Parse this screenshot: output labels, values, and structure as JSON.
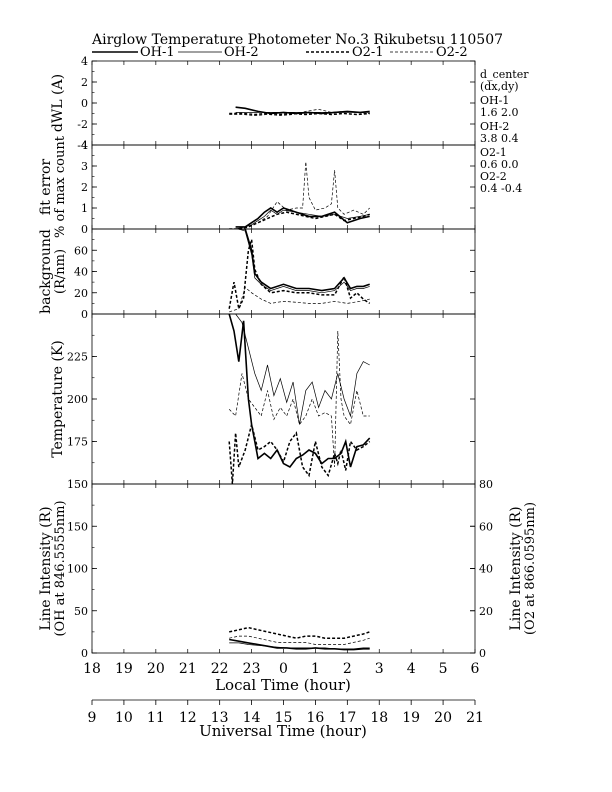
{
  "title": "Airglow Temperature Photometer No.3  Rikubetsu    110507",
  "legend": [
    {
      "label": "OH-1",
      "style": "solid-thick"
    },
    {
      "label": "OH-2",
      "style": "solid-thin"
    },
    {
      "label": "O2-1",
      "style": "dash-thick"
    },
    {
      "label": "O2-2",
      "style": "dash-thin"
    }
  ],
  "side_notes": {
    "title1": "d_center",
    "title2": "(dx,dy)",
    "oh1_name": "OH-1",
    "oh1_val": "1.6   2.0",
    "oh2_name": "OH-2",
    "oh2_val": "3.8   0.4",
    "o21_name": "O2-1",
    "o21_val": "0.6   0.0",
    "o22_name": "O2-2",
    "o22_val": "0.4   -0.4"
  },
  "x_axes": {
    "local": {
      "label": "Local Time (hour)",
      "ticks": [
        "18",
        "19",
        "20",
        "21",
        "22",
        "23",
        "0",
        "1",
        "2",
        "3",
        "4",
        "5",
        "6"
      ]
    },
    "ut": {
      "label": "Universal Time (hour)",
      "ticks": [
        "9",
        "10",
        "11",
        "12",
        "13",
        "14",
        "15",
        "16",
        "17",
        "18",
        "19",
        "20",
        "21"
      ]
    }
  },
  "chart_data": [
    {
      "type": "line",
      "panel": "dwl",
      "ylabel": "dWL (A)",
      "ylim": [
        -4,
        4
      ],
      "yticks": [
        "-4",
        "-2",
        "0",
        "2",
        "4"
      ],
      "series": [
        {
          "name": "OH-1",
          "x": [
            13.5,
            13.8,
            14.2,
            14.6,
            15.0,
            15.4,
            15.8,
            16.2,
            16.6,
            17.0,
            17.4,
            17.7
          ],
          "y": [
            -0.4,
            -0.5,
            -0.8,
            -1.0,
            -0.9,
            -1.0,
            -0.9,
            -1.0,
            -0.9,
            -0.8,
            -0.9,
            -0.8
          ]
        },
        {
          "name": "OH-2",
          "x": [
            13.5,
            13.8,
            14.2,
            14.6,
            15.0,
            15.4,
            15.8,
            16.2,
            16.6,
            17.0,
            17.4,
            17.7
          ],
          "y": [
            -0.9,
            -0.9,
            -0.9,
            -0.9,
            -0.9,
            -0.9,
            -0.9,
            -0.9,
            -0.9,
            -0.9,
            -0.9,
            -0.9
          ]
        },
        {
          "name": "O2-1",
          "x": [
            13.3,
            13.7,
            14.1,
            14.5,
            14.9,
            15.3,
            15.7,
            16.1,
            16.5,
            16.9,
            17.3,
            17.7
          ],
          "y": [
            -1.0,
            -1.0,
            -1.1,
            -1.0,
            -1.1,
            -1.0,
            -1.1,
            -1.0,
            -1.1,
            -1.0,
            -1.1,
            -1.0
          ]
        },
        {
          "name": "O2-2",
          "x": [
            13.3,
            13.7,
            14.1,
            14.5,
            14.9,
            15.3,
            15.7,
            16.1,
            16.5,
            16.9,
            17.3,
            17.7
          ],
          "y": [
            -1.1,
            -1.1,
            -1.2,
            -1.1,
            -1.2,
            -1.1,
            -0.8,
            -0.6,
            -0.9,
            -0.8,
            -0.9,
            -1.0
          ]
        }
      ]
    },
    {
      "type": "line",
      "panel": "fit_error",
      "ylabel": "fit error",
      "ylabel2": "% of max count",
      "ylim": [
        0,
        4
      ],
      "yticks": [
        "0",
        "1",
        "2",
        "3",
        "4"
      ],
      "series": [
        {
          "name": "OH-1",
          "x": [
            13.5,
            13.8,
            14.0,
            14.2,
            14.4,
            14.6,
            14.8,
            15.0,
            15.4,
            15.8,
            16.2,
            16.6,
            17.0,
            17.4,
            17.7
          ],
          "y": [
            0.1,
            0.1,
            0.3,
            0.5,
            0.8,
            1.0,
            0.8,
            1.0,
            0.8,
            0.6,
            0.6,
            0.8,
            0.3,
            0.5,
            0.6
          ]
        },
        {
          "name": "OH-2",
          "x": [
            13.5,
            13.8,
            14.0,
            14.2,
            14.4,
            14.6,
            14.8,
            15.0,
            15.4,
            15.8,
            16.2,
            16.6,
            17.0,
            17.4,
            17.7
          ],
          "y": [
            0.0,
            0.1,
            0.2,
            0.4,
            0.6,
            0.9,
            0.7,
            0.9,
            0.8,
            0.7,
            0.6,
            0.7,
            0.5,
            0.6,
            0.7
          ]
        },
        {
          "name": "O2-1",
          "x": [
            13.3,
            13.6,
            13.9,
            14.2,
            14.5,
            14.8,
            15.1,
            15.4,
            15.7,
            16.0,
            16.3,
            16.6,
            16.9,
            17.2,
            17.5,
            17.7
          ],
          "y": [
            0.0,
            0.0,
            0.1,
            0.3,
            0.5,
            0.7,
            0.8,
            0.7,
            0.6,
            0.5,
            0.6,
            0.7,
            0.4,
            0.5,
            0.6,
            0.7
          ]
        },
        {
          "name": "O2-2",
          "x": [
            13.3,
            13.6,
            13.9,
            14.2,
            14.5,
            14.8,
            15.1,
            15.4,
            15.6,
            15.7,
            15.8,
            16.0,
            16.3,
            16.5,
            16.6,
            16.7,
            16.9,
            17.2,
            17.5,
            17.7
          ],
          "y": [
            0.0,
            0.0,
            0.1,
            0.3,
            0.6,
            1.3,
            0.9,
            1.0,
            1.0,
            3.2,
            1.5,
            0.9,
            1.0,
            1.2,
            2.8,
            1.0,
            0.7,
            0.9,
            0.7,
            1.0
          ]
        }
      ]
    },
    {
      "type": "line",
      "panel": "background",
      "ylabel": "background",
      "ylabel2": "(R/nm)",
      "ylim": [
        0,
        80
      ],
      "yticks": [
        "0",
        "20",
        "40",
        "60"
      ],
      "series": [
        {
          "name": "OH-1",
          "x": [
            13.6,
            13.8,
            14.0,
            14.1,
            14.3,
            14.6,
            15.0,
            15.4,
            15.8,
            16.2,
            16.6,
            16.9,
            17.1,
            17.3,
            17.5,
            17.7
          ],
          "y": [
            80,
            80,
            60,
            38,
            30,
            24,
            28,
            24,
            24,
            22,
            24,
            34,
            24,
            26,
            26,
            28
          ]
        },
        {
          "name": "OH-2",
          "x": [
            13.6,
            13.8,
            14.0,
            14.1,
            14.3,
            14.6,
            15.0,
            15.4,
            15.8,
            16.2,
            16.6,
            16.9,
            17.1,
            17.3,
            17.5,
            17.7
          ],
          "y": [
            80,
            78,
            56,
            34,
            28,
            22,
            26,
            22,
            22,
            20,
            22,
            30,
            22,
            24,
            24,
            26
          ]
        },
        {
          "name": "O2-1",
          "x": [
            13.3,
            13.45,
            13.6,
            13.75,
            13.9,
            14.0,
            14.1,
            14.3,
            14.6,
            15.0,
            15.4,
            15.8,
            16.2,
            16.6,
            16.9,
            17.1,
            17.3,
            17.5,
            17.7
          ],
          "y": [
            5,
            30,
            5,
            15,
            60,
            70,
            42,
            28,
            20,
            22,
            20,
            20,
            18,
            18,
            35,
            15,
            20,
            14,
            10
          ]
        },
        {
          "name": "O2-2",
          "x": [
            13.3,
            13.6,
            13.8,
            14.0,
            14.3,
            14.6,
            15.0,
            15.4,
            15.8,
            16.2,
            16.6,
            17.0,
            17.4,
            17.7
          ],
          "y": [
            2,
            5,
            25,
            20,
            14,
            10,
            12,
            11,
            10,
            10,
            12,
            10,
            12,
            14
          ]
        }
      ]
    },
    {
      "type": "line",
      "panel": "temperature",
      "ylabel": "Temperature (K)",
      "ylim": [
        150,
        250
      ],
      "yticks": [
        "150",
        "175",
        "200",
        "225"
      ],
      "series": [
        {
          "name": "OH-1",
          "x": [
            13.3,
            13.45,
            13.6,
            13.75,
            13.9,
            14.0,
            14.2,
            14.4,
            14.6,
            14.8,
            15.0,
            15.2,
            15.4,
            15.6,
            15.8,
            16.0,
            16.2,
            16.4,
            16.6,
            16.8,
            16.95,
            17.1,
            17.3,
            17.5,
            17.7
          ],
          "y": [
            250,
            240,
            222,
            246,
            200,
            185,
            165,
            168,
            165,
            170,
            162,
            160,
            165,
            167,
            170,
            168,
            162,
            165,
            165,
            168,
            175,
            160,
            172,
            173,
            177
          ]
        },
        {
          "name": "OH-2",
          "x": [
            13.5,
            13.7,
            13.9,
            14.1,
            14.3,
            14.5,
            14.7,
            14.9,
            15.1,
            15.3,
            15.5,
            15.7,
            15.9,
            16.1,
            16.3,
            16.5,
            16.7,
            16.9,
            17.1,
            17.3,
            17.5,
            17.7
          ],
          "y": [
            250,
            245,
            230,
            215,
            205,
            220,
            202,
            212,
            198,
            210,
            185,
            205,
            210,
            195,
            205,
            200,
            215,
            200,
            190,
            215,
            222,
            220
          ]
        },
        {
          "name": "O2-1",
          "x": [
            13.3,
            13.4,
            13.5,
            13.6,
            13.8,
            14.0,
            14.2,
            14.4,
            14.6,
            14.8,
            15.0,
            15.2,
            15.4,
            15.6,
            15.8,
            16.0,
            16.2,
            16.4,
            16.6,
            16.7,
            16.8,
            16.95,
            17.1,
            17.3,
            17.5,
            17.7
          ],
          "y": [
            175,
            150,
            180,
            160,
            170,
            185,
            170,
            172,
            175,
            170,
            163,
            175,
            180,
            160,
            155,
            175,
            160,
            155,
            168,
            162,
            170,
            158,
            175,
            170,
            172,
            175
          ]
        },
        {
          "name": "O2-2",
          "x": [
            13.3,
            13.5,
            13.7,
            13.9,
            14.1,
            14.3,
            14.5,
            14.7,
            14.9,
            15.1,
            15.3,
            15.5,
            15.7,
            15.9,
            16.1,
            16.3,
            16.5,
            16.6,
            16.7,
            16.8,
            16.9,
            17.1,
            17.3,
            17.5,
            17.7
          ],
          "y": [
            194,
            190,
            215,
            200,
            195,
            190,
            205,
            188,
            195,
            190,
            200,
            185,
            190,
            200,
            190,
            192,
            190,
            160,
            240,
            200,
            190,
            185,
            205,
            190,
            190
          ]
        }
      ]
    },
    {
      "type": "line",
      "panel": "intensity",
      "ylabel": "Line Intensity (R)",
      "ylabel2": "(OH at 846.5555nm)",
      "y2label": "Line Intensity (R)",
      "y2label2": "(O2 at 866.0595nm)",
      "ylim": [
        0,
        200
      ],
      "yticks": [
        "0",
        "50",
        "100",
        "150"
      ],
      "y2lim": [
        0,
        80
      ],
      "y2ticks": [
        "0",
        "20",
        "40",
        "60",
        "80"
      ],
      "series": [
        {
          "name": "OH-1",
          "axis": "left",
          "x": [
            13.3,
            13.6,
            13.9,
            14.2,
            14.5,
            14.8,
            15.1,
            15.4,
            15.7,
            16.0,
            16.3,
            16.6,
            16.9,
            17.2,
            17.5,
            17.7
          ],
          "y": [
            16,
            14,
            12,
            10,
            8,
            6,
            6,
            5,
            5,
            6,
            5,
            5,
            4,
            4,
            5,
            5
          ]
        },
        {
          "name": "OH-2",
          "axis": "left",
          "x": [
            13.3,
            13.6,
            13.9,
            14.2,
            14.5,
            14.8,
            15.1,
            15.4,
            15.7,
            16.0,
            16.3,
            16.6,
            16.9,
            17.2,
            17.5,
            17.7
          ],
          "y": [
            12,
            12,
            10,
            9,
            8,
            7,
            6,
            6,
            6,
            6,
            6,
            5,
            5,
            5,
            6,
            6
          ]
        },
        {
          "name": "O2-1",
          "axis": "right",
          "x": [
            13.3,
            13.6,
            13.9,
            14.2,
            14.5,
            14.8,
            15.1,
            15.4,
            15.7,
            16.0,
            16.3,
            16.6,
            16.9,
            17.2,
            17.5,
            17.7
          ],
          "y": [
            10,
            11,
            12,
            11,
            10,
            9,
            8,
            7,
            8,
            8,
            7,
            7,
            7,
            8,
            9,
            10
          ]
        },
        {
          "name": "O2-2",
          "axis": "right",
          "x": [
            13.3,
            13.6,
            13.9,
            14.2,
            14.5,
            14.8,
            15.1,
            15.4,
            15.7,
            16.0,
            16.3,
            16.6,
            16.9,
            17.2,
            17.5,
            17.7
          ],
          "y": [
            7,
            8,
            8,
            7,
            6,
            5,
            5,
            5,
            5,
            4,
            4,
            4,
            4,
            5,
            6,
            7
          ]
        }
      ]
    }
  ]
}
